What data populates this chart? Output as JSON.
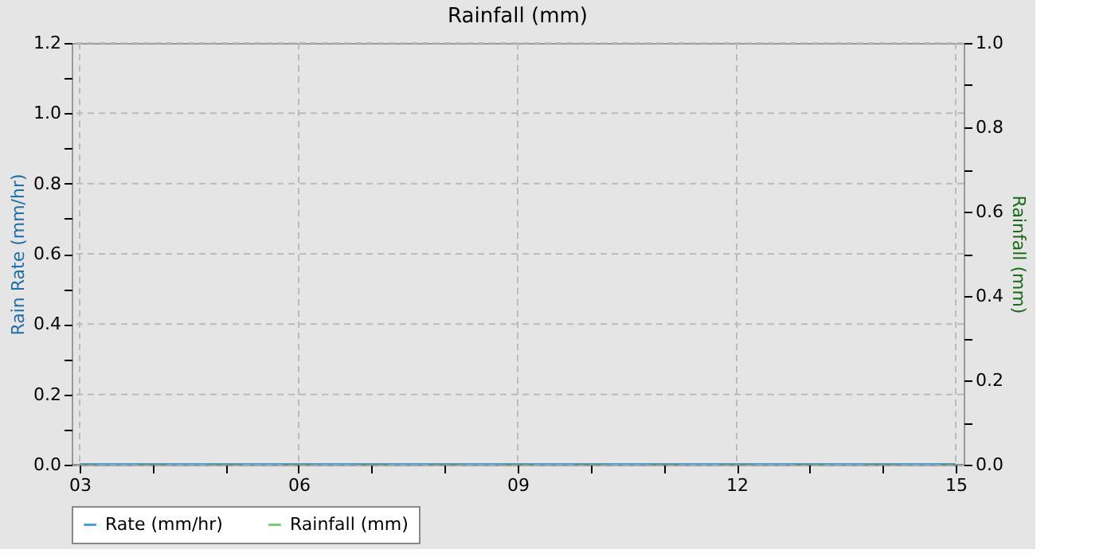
{
  "chart_data": {
    "type": "line",
    "title": "Rainfall (mm)",
    "ylabel": "Rain Rate (mm/hr)",
    "y2label": "Rainfall (mm)",
    "x": [
      3,
      4,
      5,
      6,
      7,
      8,
      9,
      10,
      11,
      12,
      13,
      14,
      15
    ],
    "series": [
      {
        "name": "Rate (mm/hr)",
        "color": "#4a9fd4",
        "values": [
          0,
          0,
          0,
          0,
          0,
          0,
          0,
          0,
          0,
          0,
          0,
          0,
          0
        ]
      },
      {
        "name": "Rainfall (mm)",
        "type": "bar",
        "axis": "y2",
        "color": "#77cc77",
        "values": [
          0,
          0,
          0,
          0,
          0,
          0,
          0,
          0,
          0,
          0,
          0,
          0,
          0
        ]
      }
    ],
    "xlim": [
      3,
      15
    ],
    "xticks": [
      {
        "value": 3,
        "label": "03"
      },
      {
        "value": 4,
        "label": null
      },
      {
        "value": 5,
        "label": null
      },
      {
        "value": 6,
        "label": "06"
      },
      {
        "value": 7,
        "label": null
      },
      {
        "value": 8,
        "label": null
      },
      {
        "value": 9,
        "label": "09"
      },
      {
        "value": 10,
        "label": null
      },
      {
        "value": 11,
        "label": null
      },
      {
        "value": 12,
        "label": "12"
      },
      {
        "value": 13,
        "label": null
      },
      {
        "value": 14,
        "label": null
      },
      {
        "value": 15,
        "label": "15"
      }
    ],
    "ylim": [
      0,
      1.2
    ],
    "yticks": [
      {
        "value": 0,
        "label": "0.0"
      },
      {
        "value": 0.1,
        "label": null
      },
      {
        "value": 0.2,
        "label": "0.2"
      },
      {
        "value": 0.3,
        "label": null
      },
      {
        "value": 0.4,
        "label": "0.4"
      },
      {
        "value": 0.5,
        "label": null
      },
      {
        "value": 0.6,
        "label": "0.6"
      },
      {
        "value": 0.7,
        "label": null
      },
      {
        "value": 0.8,
        "label": "0.8"
      },
      {
        "value": 0.9,
        "label": null
      },
      {
        "value": 1.0,
        "label": "1.0"
      },
      {
        "value": 1.1,
        "label": null
      },
      {
        "value": 1.2,
        "label": "1.2"
      }
    ],
    "y2lim": [
      0,
      1
    ],
    "y2ticks": [
      {
        "value": 0,
        "label": "0.0"
      },
      {
        "value": 0.1,
        "label": null
      },
      {
        "value": 0.2,
        "label": "0.2"
      },
      {
        "value": 0.3,
        "label": null
      },
      {
        "value": 0.4,
        "label": "0.4"
      },
      {
        "value": 0.5,
        "label": null
      },
      {
        "value": 0.6,
        "label": "0.6"
      },
      {
        "value": 0.7,
        "label": null
      },
      {
        "value": 0.8,
        "label": "0.8"
      },
      {
        "value": 0.9,
        "label": null
      },
      {
        "value": 1.0,
        "label": "1.0"
      }
    ],
    "grid": true,
    "legend": "bottom",
    "line_style": "solid",
    "marker": "none"
  }
}
